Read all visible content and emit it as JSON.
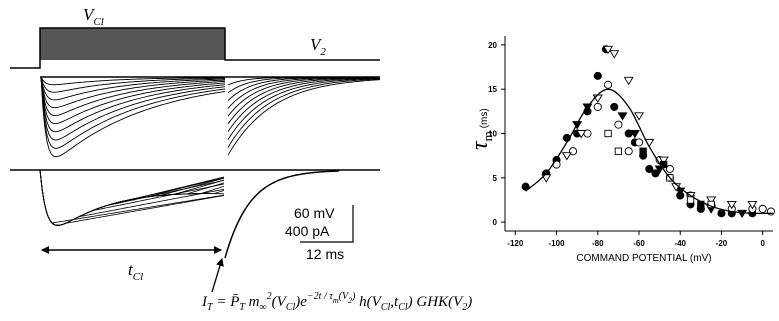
{
  "protocol_labels": {
    "v_cl": {
      "base": "V",
      "sub": "Cl"
    },
    "v_2": {
      "base": "V",
      "sub": "2"
    }
  },
  "scale_bar": [
    "60 mV",
    "400 pA",
    "12 ms"
  ],
  "t_cl": {
    "base": "t",
    "sub": "Cl"
  },
  "formula": [
    {
      "text": "I",
      "pos": "base"
    },
    {
      "text": "T",
      "pos": "sub"
    },
    {
      "text": " = ",
      "pos": "base"
    },
    {
      "text": "P̄",
      "pos": "base"
    },
    {
      "text": "T",
      "pos": "sub"
    },
    {
      "text": " m",
      "pos": "base"
    },
    {
      "text": "∞",
      "pos": "sub"
    },
    {
      "text": "2",
      "pos": "sup"
    },
    {
      "text": "(V",
      "pos": "base"
    },
    {
      "text": "Cl",
      "pos": "sub"
    },
    {
      "text": ")e",
      "pos": "base"
    },
    {
      "text": "−2t / τ",
      "pos": "sup"
    },
    {
      "text": "m",
      "pos": "supsub"
    },
    {
      "text": "(V",
      "pos": "sup"
    },
    {
      "text": "2",
      "pos": "supsub"
    },
    {
      "text": ")",
      "pos": "sup"
    },
    {
      "text": " h(V",
      "pos": "base"
    },
    {
      "text": "Cl",
      "pos": "sub"
    },
    {
      "text": ",t",
      "pos": "base"
    },
    {
      "text": "Cl",
      "pos": "sub"
    },
    {
      "text": ") GHK(V",
      "pos": "base"
    },
    {
      "text": "2",
      "pos": "sub"
    },
    {
      "text": ")",
      "pos": "base"
    }
  ],
  "chart_data": {
    "type": "scatter",
    "x_label": "COMMAND POTENTIAL (mV)",
    "y_label": {
      "base": "τ",
      "sub": "m",
      "unit": "(ms)"
    },
    "xlim": [
      -125,
      5
    ],
    "ylim": [
      -1,
      21
    ],
    "xticks": [
      -120,
      -100,
      -80,
      -60,
      -40,
      -20,
      0
    ],
    "yticks": [
      0,
      5,
      10,
      15,
      20
    ],
    "series": [
      {
        "marker": "circle",
        "filled": true,
        "color": "#000000",
        "x": [
          -115,
          -105,
          -100,
          -95,
          -90,
          -85,
          -80,
          -76,
          -72,
          -65,
          -62,
          -58,
          -55,
          -52,
          -45,
          -40,
          -35,
          -30,
          -20,
          -15,
          -5
        ],
        "values": [
          4,
          5.5,
          7,
          9.5,
          10,
          12.5,
          16.5,
          19.5,
          13,
          10,
          9,
          7.5,
          6,
          5.5,
          5,
          3,
          2,
          1.5,
          1,
          1,
          1
        ]
      },
      {
        "marker": "circle",
        "filled": false,
        "color": "#000000",
        "x": [
          -100,
          -92,
          -85,
          -80,
          -75,
          -70,
          -65,
          -60,
          -50,
          -45,
          -35,
          -25,
          -15,
          -5,
          0,
          4
        ],
        "values": [
          6.5,
          8,
          10,
          13,
          15.5,
          11,
          8,
          9,
          7,
          6,
          3,
          2,
          1.5,
          1.5,
          1.5,
          1.2
        ]
      },
      {
        "marker": "triangle-down",
        "filled": true,
        "color": "#000000",
        "x": [
          -90,
          -85,
          -80,
          -68,
          -62,
          -50,
          -40,
          -25,
          -10
        ],
        "values": [
          11,
          13,
          14,
          12,
          10,
          6,
          3.5,
          1.5,
          1
        ]
      },
      {
        "marker": "triangle-down",
        "filled": false,
        "color": "#000000",
        "x": [
          -105,
          -95,
          -88,
          -80,
          -75,
          -72,
          -65,
          -60,
          -55,
          -48,
          -42,
          -35,
          -25,
          -15,
          -5
        ],
        "values": [
          5,
          7.5,
          10,
          14,
          19.5,
          19,
          16,
          12,
          9,
          7,
          4,
          3,
          2.5,
          2,
          2
        ]
      },
      {
        "marker": "square",
        "filled": false,
        "color": "#000000",
        "x": [
          -75,
          -70,
          -45,
          -35,
          -25
        ],
        "values": [
          10,
          8,
          5,
          2.5,
          2
        ]
      },
      {
        "marker": "square",
        "filled": true,
        "color": "#000000",
        "x": [
          -58,
          -48,
          -30
        ],
        "values": [
          8,
          6.5,
          2
        ]
      },
      {
        "marker": "line",
        "color": "#000000",
        "x": [
          -115,
          -105,
          -95,
          -85,
          -75,
          -65,
          -55,
          -45,
          -35,
          -25,
          -15,
          -5,
          5
        ],
        "values": [
          3.5,
          5.5,
          9,
          13,
          15,
          13,
          8.5,
          5,
          3,
          1.8,
          1.2,
          1,
          1
        ]
      }
    ]
  }
}
